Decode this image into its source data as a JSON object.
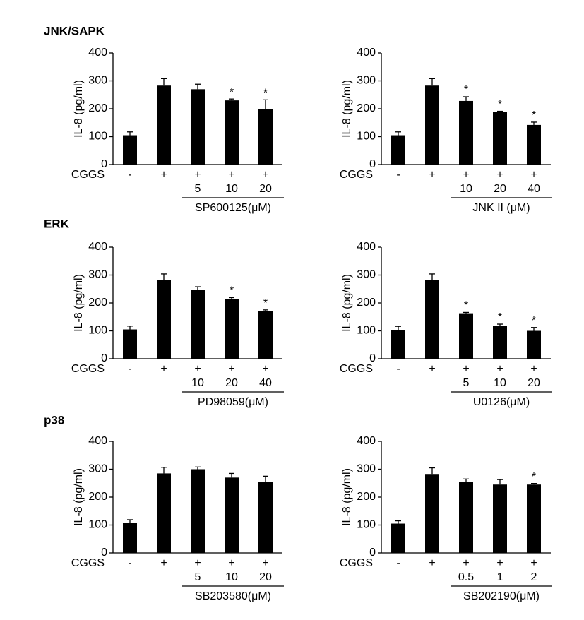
{
  "section_titles": [
    "JNK/SAPK",
    "ERK",
    "p38"
  ],
  "chart_data": [
    {
      "type": "bar",
      "ylabel": "IL-8 (pg/ml)",
      "category_row_label": "CGGS",
      "categories": [
        "-",
        "+",
        "+",
        "+",
        "+"
      ],
      "doses": [
        null,
        null,
        "5",
        "10",
        "20"
      ],
      "dose_label": "SP600125(μM)",
      "values": [
        105,
        283,
        270,
        230,
        200
      ],
      "errors": [
        12,
        25,
        18,
        5,
        32
      ],
      "markers": [
        null,
        null,
        null,
        "*",
        "*"
      ],
      "color": "#000000",
      "ylim": [
        0,
        400
      ],
      "yticks": [
        0,
        100,
        200,
        300,
        400
      ]
    },
    {
      "type": "bar",
      "ylabel": "IL-8 (pg/ml)",
      "category_row_label": "CGGS",
      "categories": [
        "-",
        "+",
        "+",
        "+",
        "+"
      ],
      "doses": [
        null,
        null,
        "10",
        "20",
        "40"
      ],
      "dose_label": "JNK II (μM)",
      "values": [
        105,
        283,
        228,
        188,
        142
      ],
      "errors": [
        12,
        25,
        15,
        3,
        10
      ],
      "markers": [
        null,
        null,
        "*",
        "*",
        "*"
      ],
      "color": "#000000",
      "ylim": [
        0,
        400
      ],
      "yticks": [
        0,
        100,
        200,
        300,
        400
      ]
    },
    {
      "type": "bar",
      "ylabel": "IL-8 (pg/ml)",
      "category_row_label": "CGGS",
      "categories": [
        "-",
        "+",
        "+",
        "+",
        "+"
      ],
      "doses": [
        null,
        null,
        "10",
        "20",
        "40"
      ],
      "dose_label": "PD98059(μM)",
      "values": [
        105,
        282,
        248,
        213,
        172
      ],
      "errors": [
        12,
        22,
        10,
        6,
        3
      ],
      "markers": [
        null,
        null,
        null,
        "*",
        "*"
      ],
      "color": "#000000",
      "ylim": [
        0,
        400
      ],
      "yticks": [
        0,
        100,
        200,
        300,
        400
      ]
    },
    {
      "type": "bar",
      "ylabel": "IL-8 (pg/ml)",
      "category_row_label": "CGGS",
      "categories": [
        "-",
        "+",
        "+",
        "+",
        "+"
      ],
      "doses": [
        null,
        null,
        "5",
        "10",
        "20"
      ],
      "dose_label": "U0126(μM)",
      "values": [
        103,
        282,
        163,
        117,
        100
      ],
      "errors": [
        13,
        22,
        3,
        7,
        12
      ],
      "markers": [
        null,
        null,
        "*",
        "*",
        "*"
      ],
      "color": "#000000",
      "ylim": [
        0,
        400
      ],
      "yticks": [
        0,
        100,
        200,
        300,
        400
      ]
    },
    {
      "type": "bar",
      "ylabel": "IL-8 (pg/ml)",
      "category_row_label": "CGGS",
      "categories": [
        "-",
        "+",
        "+",
        "+",
        "+"
      ],
      "doses": [
        null,
        null,
        "5",
        "10",
        "20"
      ],
      "dose_label": "SB203580(μM)",
      "values": [
        107,
        285,
        300,
        270,
        255
      ],
      "errors": [
        12,
        22,
        8,
        15,
        20
      ],
      "markers": [
        null,
        null,
        null,
        null,
        null
      ],
      "color": "#000000",
      "ylim": [
        0,
        400
      ],
      "yticks": [
        0,
        100,
        200,
        300,
        400
      ]
    },
    {
      "type": "bar",
      "ylabel": "IL-8 (pg/ml)",
      "category_row_label": "CGGS",
      "categories": [
        "-",
        "+",
        "+",
        "+",
        "+"
      ],
      "doses": [
        null,
        null,
        "0.5",
        "1",
        "2"
      ],
      "dose_label": "SB202190(μM)",
      "values": [
        105,
        283,
        255,
        245,
        245
      ],
      "errors": [
        10,
        22,
        10,
        18,
        4
      ],
      "markers": [
        null,
        null,
        null,
        null,
        "*"
      ],
      "color": "#000000",
      "ylim": [
        0,
        400
      ],
      "yticks": [
        0,
        100,
        200,
        300,
        400
      ]
    }
  ]
}
